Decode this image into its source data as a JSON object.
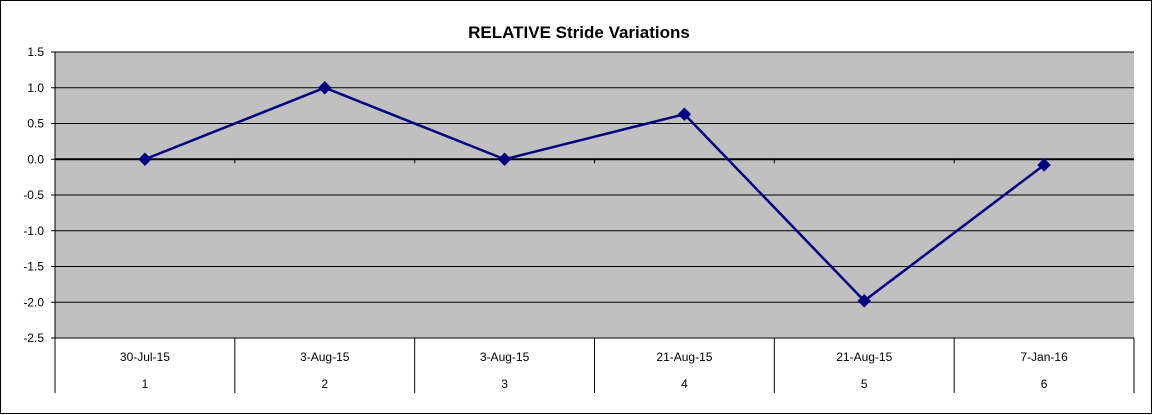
{
  "chart_data": {
    "type": "line",
    "title": "RELATIVE Stride Variations",
    "xlabel": "",
    "ylabel": "",
    "categories": [
      {
        "date": "30-Jul-15",
        "index": "1"
      },
      {
        "date": "3-Aug-15",
        "index": "2"
      },
      {
        "date": "3-Aug-15",
        "index": "3"
      },
      {
        "date": "21-Aug-15",
        "index": "4"
      },
      {
        "date": "21-Aug-15",
        "index": "5"
      },
      {
        "date": "7-Jan-16",
        "index": "6"
      }
    ],
    "series": [
      {
        "values": [
          0.0,
          1.0,
          0.0,
          0.63,
          -1.98,
          -0.08
        ],
        "color": "#000080",
        "marker": "diamond"
      }
    ],
    "ylim": [
      -2.5,
      1.5
    ],
    "yticks": [
      "1.5",
      "1.0",
      "0.5",
      "0.0",
      "-0.5",
      "-1.0",
      "-1.5",
      "-2.0",
      "-2.5"
    ],
    "grid": true,
    "legend": "none",
    "colors": {
      "plot_background": "#C0C0C0",
      "gridline": "#000000",
      "series_line": "#000080"
    }
  }
}
